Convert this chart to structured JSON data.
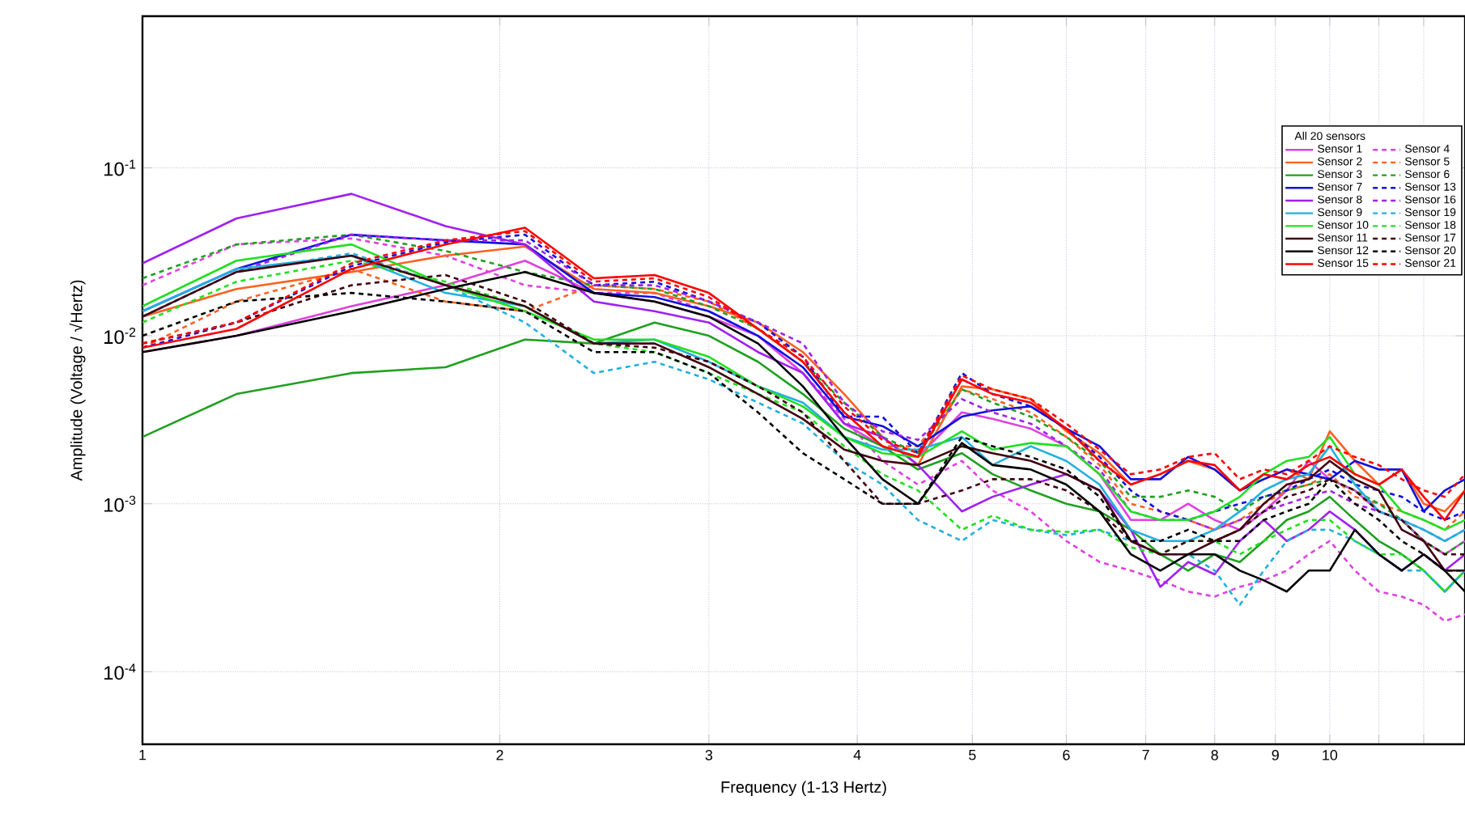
{
  "chart_data": {
    "type": "line",
    "xlabel": "Frequency (1-13 Hertz)",
    "ylabel": "Amplitude (Voltage / √Hertz)",
    "legend_title": "All 20 sensors",
    "log": "xy",
    "grid": true,
    "legend": "top right",
    "marker": "none",
    "xlim": [
      1,
      13
    ],
    "ylim": [
      3.7e-05,
      0.8
    ],
    "xticks": [
      1,
      2,
      3,
      4,
      5,
      6,
      7,
      8,
      9,
      10,
      {
        "value": 11,
        "label": null
      },
      {
        "value": 12,
        "label": null
      },
      {
        "value": 13,
        "label": null
      }
    ],
    "yticks": [
      {
        "value": 0.0001,
        "label": "10$^{-4}$"
      },
      {
        "value": 0.001,
        "label": "10$^{-3}$"
      },
      {
        "value": 0.01,
        "label": "10$^{-2}$"
      },
      {
        "value": 0.1,
        "label": "10$^{-1}$"
      }
    ],
    "x": [
      1,
      1.2,
      1.5,
      1.8,
      2.1,
      2.4,
      2.7,
      3.0,
      3.3,
      3.6,
      3.9,
      4.2,
      4.5,
      4.9,
      5.2,
      5.6,
      6.0,
      6.4,
      6.8,
      7.2,
      7.6,
      8.0,
      8.4,
      8.8,
      9.2,
      9.6,
      10.0,
      10.5,
      11.0,
      11.5,
      12.0,
      12.5,
      13.0
    ],
    "series": [
      {
        "name": "Sensor 1",
        "color": "#e040e0",
        "line_style": "solid",
        "values": [
          0.008,
          0.01,
          0.015,
          0.02,
          0.028,
          0.018,
          0.016,
          0.013,
          0.01,
          0.006,
          0.003,
          0.0022,
          0.0019,
          0.0035,
          0.0032,
          0.0028,
          0.0022,
          0.0015,
          0.0008,
          0.0008,
          0.001,
          0.0008,
          0.0007,
          0.0009,
          0.0012,
          0.0018,
          0.0014,
          0.0012,
          0.0009,
          0.0008,
          0.0006,
          0.0005,
          0.0006
        ]
      },
      {
        "name": "Sensor 4",
        "color": "#e040e0",
        "line_style": "dashed",
        "values": [
          0.02,
          0.035,
          0.038,
          0.03,
          0.02,
          0.018,
          0.018,
          0.014,
          0.01,
          0.006,
          0.0032,
          0.0018,
          0.0013,
          0.0018,
          0.0012,
          0.0009,
          0.0006,
          0.00045,
          0.0004,
          0.00035,
          0.0003,
          0.00028,
          0.00032,
          0.00035,
          0.0004,
          0.0005,
          0.0006,
          0.0004,
          0.0003,
          0.00028,
          0.00025,
          0.0002,
          0.00022
        ]
      },
      {
        "name": "Sensor 2",
        "color": "#ff6020",
        "line_style": "solid",
        "values": [
          0.013,
          0.019,
          0.024,
          0.03,
          0.034,
          0.019,
          0.018,
          0.015,
          0.012,
          0.008,
          0.0045,
          0.0025,
          0.0017,
          0.005,
          0.0048,
          0.0042,
          0.0027,
          0.002,
          0.0013,
          0.0015,
          0.0018,
          0.0016,
          0.0012,
          0.0014,
          0.0016,
          0.0014,
          0.0027,
          0.0018,
          0.0013,
          0.0016,
          0.001,
          0.0009,
          0.0012
        ]
      },
      {
        "name": "Sensor 5",
        "color": "#ff6020",
        "line_style": "dashed",
        "values": [
          0.0085,
          0.016,
          0.025,
          0.016,
          0.014,
          0.02,
          0.019,
          0.016,
          0.011,
          0.007,
          0.0035,
          0.0022,
          0.0022,
          0.0048,
          0.0042,
          0.0035,
          0.0025,
          0.0017,
          0.001,
          0.0009,
          0.0008,
          0.0007,
          0.0008,
          0.001,
          0.0012,
          0.0013,
          0.0015,
          0.0011,
          0.001,
          0.0009,
          0.0008,
          0.0007,
          0.0009
        ]
      },
      {
        "name": "Sensor 3",
        "color": "#20a020",
        "line_style": "solid",
        "values": [
          0.0025,
          0.0045,
          0.006,
          0.0065,
          0.0095,
          0.009,
          0.012,
          0.01,
          0.007,
          0.0045,
          0.0028,
          0.0022,
          0.0016,
          0.002,
          0.0015,
          0.0012,
          0.001,
          0.0009,
          0.0007,
          0.0005,
          0.0004,
          0.0005,
          0.00045,
          0.0006,
          0.0008,
          0.0009,
          0.0011,
          0.0008,
          0.0006,
          0.0005,
          0.0004,
          0.0003,
          0.0004
        ]
      },
      {
        "name": "Sensor 6",
        "color": "#20a020",
        "line_style": "dashed",
        "values": [
          0.022,
          0.035,
          0.04,
          0.032,
          0.024,
          0.02,
          0.019,
          0.015,
          0.011,
          0.007,
          0.004,
          0.0025,
          0.002,
          0.0048,
          0.004,
          0.0033,
          0.0025,
          0.0018,
          0.0011,
          0.0011,
          0.0012,
          0.0011,
          0.0009,
          0.0011,
          0.0012,
          0.0013,
          0.0014,
          0.0012,
          0.001,
          0.0008,
          0.0006,
          0.0005,
          0.0006
        ]
      },
      {
        "name": "Sensor 7",
        "color": "#1010e0",
        "line_style": "solid",
        "values": [
          0.014,
          0.025,
          0.04,
          0.037,
          0.035,
          0.018,
          0.017,
          0.014,
          0.01,
          0.0065,
          0.0033,
          0.0029,
          0.0022,
          0.0033,
          0.0036,
          0.0038,
          0.0028,
          0.0022,
          0.0014,
          0.0014,
          0.0019,
          0.0016,
          0.0012,
          0.0014,
          0.0016,
          0.0015,
          0.0014,
          0.0018,
          0.0016,
          0.0016,
          0.0009,
          0.0012,
          0.0014
        ]
      },
      {
        "name": "Sensor 13",
        "color": "#1010e0",
        "line_style": "dashed",
        "values": [
          0.0085,
          0.012,
          0.026,
          0.036,
          0.04,
          0.02,
          0.021,
          0.016,
          0.012,
          0.0075,
          0.0033,
          0.0033,
          0.002,
          0.006,
          0.0045,
          0.0038,
          0.0028,
          0.0019,
          0.0012,
          0.0009,
          0.0008,
          0.0009,
          0.001,
          0.0011,
          0.0012,
          0.0014,
          0.0016,
          0.0013,
          0.0012,
          0.0011,
          0.0009,
          0.0008,
          0.0009
        ]
      },
      {
        "name": "Sensor 8",
        "color": "#a020f0",
        "line_style": "solid",
        "values": [
          0.027,
          0.05,
          0.07,
          0.045,
          0.035,
          0.016,
          0.014,
          0.012,
          0.008,
          0.006,
          0.003,
          0.0025,
          0.0017,
          0.0009,
          0.0011,
          0.0013,
          0.0015,
          0.0012,
          0.0007,
          0.00032,
          0.00045,
          0.00038,
          0.0006,
          0.0008,
          0.0006,
          0.0007,
          0.0009,
          0.0007,
          0.0005,
          0.0004,
          0.0005,
          0.0004,
          0.0005
        ]
      },
      {
        "name": "Sensor 16",
        "color": "#a020f0",
        "line_style": "dashed",
        "values": [
          0.013,
          0.024,
          0.04,
          0.037,
          0.037,
          0.02,
          0.02,
          0.016,
          0.012,
          0.009,
          0.004,
          0.0027,
          0.0024,
          0.0042,
          0.0035,
          0.003,
          0.0022,
          0.0016,
          0.0009,
          0.0008,
          0.0008,
          0.0007,
          0.0008,
          0.0009,
          0.001,
          0.0011,
          0.0012,
          0.001,
          0.0009,
          0.0008,
          0.0007,
          0.0006,
          0.0007
        ]
      },
      {
        "name": "Sensor 9",
        "color": "#20b0e0",
        "line_style": "solid",
        "values": [
          0.014,
          0.025,
          0.03,
          0.018,
          0.015,
          0.009,
          0.0095,
          0.007,
          0.005,
          0.004,
          0.0025,
          0.0021,
          0.0021,
          0.0025,
          0.0017,
          0.0022,
          0.0018,
          0.0013,
          0.0007,
          0.0006,
          0.0006,
          0.0007,
          0.0009,
          0.0012,
          0.0014,
          0.0015,
          0.0022,
          0.0013,
          0.0009,
          0.0008,
          0.0007,
          0.0006,
          0.0007
        ]
      },
      {
        "name": "Sensor 19",
        "color": "#20b0e0",
        "line_style": "dashed",
        "values": [
          0.013,
          0.024,
          0.031,
          0.02,
          0.012,
          0.006,
          0.007,
          0.0055,
          0.004,
          0.003,
          0.0018,
          0.0013,
          0.0008,
          0.0006,
          0.0008,
          0.0007,
          0.00065,
          0.0007,
          0.0006,
          0.0005,
          0.0005,
          0.0004,
          0.00025,
          0.0004,
          0.0006,
          0.0007,
          0.0007,
          0.0006,
          0.0005,
          0.0004,
          0.0004,
          0.0003,
          0.0004
        ]
      },
      {
        "name": "Sensor 10",
        "color": "#20e020",
        "line_style": "solid",
        "values": [
          0.015,
          0.028,
          0.035,
          0.02,
          0.014,
          0.0095,
          0.0095,
          0.0075,
          0.005,
          0.0038,
          0.0025,
          0.002,
          0.0019,
          0.0027,
          0.0021,
          0.0023,
          0.0022,
          0.0015,
          0.0009,
          0.0008,
          0.0008,
          0.0009,
          0.0011,
          0.0015,
          0.0018,
          0.0019,
          0.0025,
          0.0015,
          0.0013,
          0.0009,
          0.0008,
          0.0007,
          0.0008
        ]
      },
      {
        "name": "Sensor 18",
        "color": "#20e020",
        "line_style": "dashed",
        "values": [
          0.012,
          0.021,
          0.028,
          0.021,
          0.015,
          0.009,
          0.008,
          0.006,
          0.0045,
          0.0035,
          0.0022,
          0.0015,
          0.0012,
          0.0007,
          0.00085,
          0.0007,
          0.00068,
          0.0007,
          0.00055,
          0.0005,
          0.0006,
          0.0006,
          0.0005,
          0.0006,
          0.0007,
          0.0008,
          0.0008,
          0.0006,
          0.0005,
          0.0005,
          0.0004,
          0.0003,
          0.0004
        ]
      },
      {
        "name": "Sensor 11",
        "color": "#400010",
        "line_style": "solid",
        "values": [
          0.013,
          0.024,
          0.03,
          0.02,
          0.015,
          0.009,
          0.009,
          0.0065,
          0.0045,
          0.0032,
          0.0021,
          0.0018,
          0.0017,
          0.0022,
          0.002,
          0.0018,
          0.0015,
          0.0012,
          0.0006,
          0.0005,
          0.0005,
          0.0006,
          0.0007,
          0.001,
          0.0013,
          0.0014,
          0.0018,
          0.0014,
          0.0012,
          0.0007,
          0.0006,
          0.0004,
          0.0004
        ]
      },
      {
        "name": "Sensor 17",
        "color": "#400010",
        "line_style": "dashed",
        "values": [
          0.009,
          0.012,
          0.02,
          0.023,
          0.016,
          0.009,
          0.0085,
          0.007,
          0.005,
          0.0035,
          0.0018,
          0.001,
          0.001,
          0.0012,
          0.0014,
          0.0014,
          0.0012,
          0.0009,
          0.0006,
          0.0005,
          0.0006,
          0.0006,
          0.0007,
          0.0009,
          0.0011,
          0.0012,
          0.0014,
          0.0012,
          0.0009,
          0.0008,
          0.0006,
          0.0005,
          0.0005
        ]
      },
      {
        "name": "Sensor 12",
        "color": "#000000",
        "line_style": "solid",
        "values": [
          0.008,
          0.01,
          0.014,
          0.019,
          0.024,
          0.018,
          0.016,
          0.013,
          0.009,
          0.005,
          0.0025,
          0.0014,
          0.001,
          0.0023,
          0.0017,
          0.0016,
          0.0013,
          0.0009,
          0.0005,
          0.0004,
          0.0005,
          0.0005,
          0.0004,
          0.00035,
          0.0003,
          0.0004,
          0.0004,
          0.0007,
          0.0005,
          0.0004,
          0.0005,
          0.0004,
          0.0003
        ]
      },
      {
        "name": "Sensor 20",
        "color": "#000000",
        "line_style": "dashed",
        "values": [
          0.01,
          0.016,
          0.018,
          0.016,
          0.014,
          0.008,
          0.008,
          0.006,
          0.0035,
          0.002,
          0.0014,
          0.001,
          0.001,
          0.0025,
          0.0022,
          0.0019,
          0.0016,
          0.0011,
          0.0006,
          0.0006,
          0.0007,
          0.0006,
          0.0006,
          0.0008,
          0.0009,
          0.001,
          0.0014,
          0.001,
          0.0008,
          0.0006,
          0.0005,
          0.0004,
          0.0004
        ]
      },
      {
        "name": "Sensor 15",
        "color": "#ff0000",
        "line_style": "solid",
        "values": [
          0.0085,
          0.011,
          0.025,
          0.035,
          0.044,
          0.022,
          0.023,
          0.018,
          0.011,
          0.007,
          0.0035,
          0.0022,
          0.0019,
          0.0055,
          0.0045,
          0.004,
          0.0028,
          0.0018,
          0.0013,
          0.0015,
          0.0018,
          0.0017,
          0.0012,
          0.0015,
          0.0014,
          0.0017,
          0.0019,
          0.0015,
          0.0013,
          0.0016,
          0.0011,
          0.0008,
          0.0012
        ]
      },
      {
        "name": "Sensor 21",
        "color": "#ff0000",
        "line_style": "dashed",
        "values": [
          0.009,
          0.012,
          0.027,
          0.037,
          0.042,
          0.021,
          0.022,
          0.017,
          0.011,
          0.0075,
          0.0038,
          0.0024,
          0.002,
          0.0058,
          0.0048,
          0.0042,
          0.003,
          0.0021,
          0.0015,
          0.0016,
          0.0019,
          0.002,
          0.0014,
          0.0016,
          0.0015,
          0.0018,
          0.0022,
          0.0019,
          0.0017,
          0.0014,
          0.0012,
          0.0011,
          0.0015
        ]
      }
    ]
  }
}
